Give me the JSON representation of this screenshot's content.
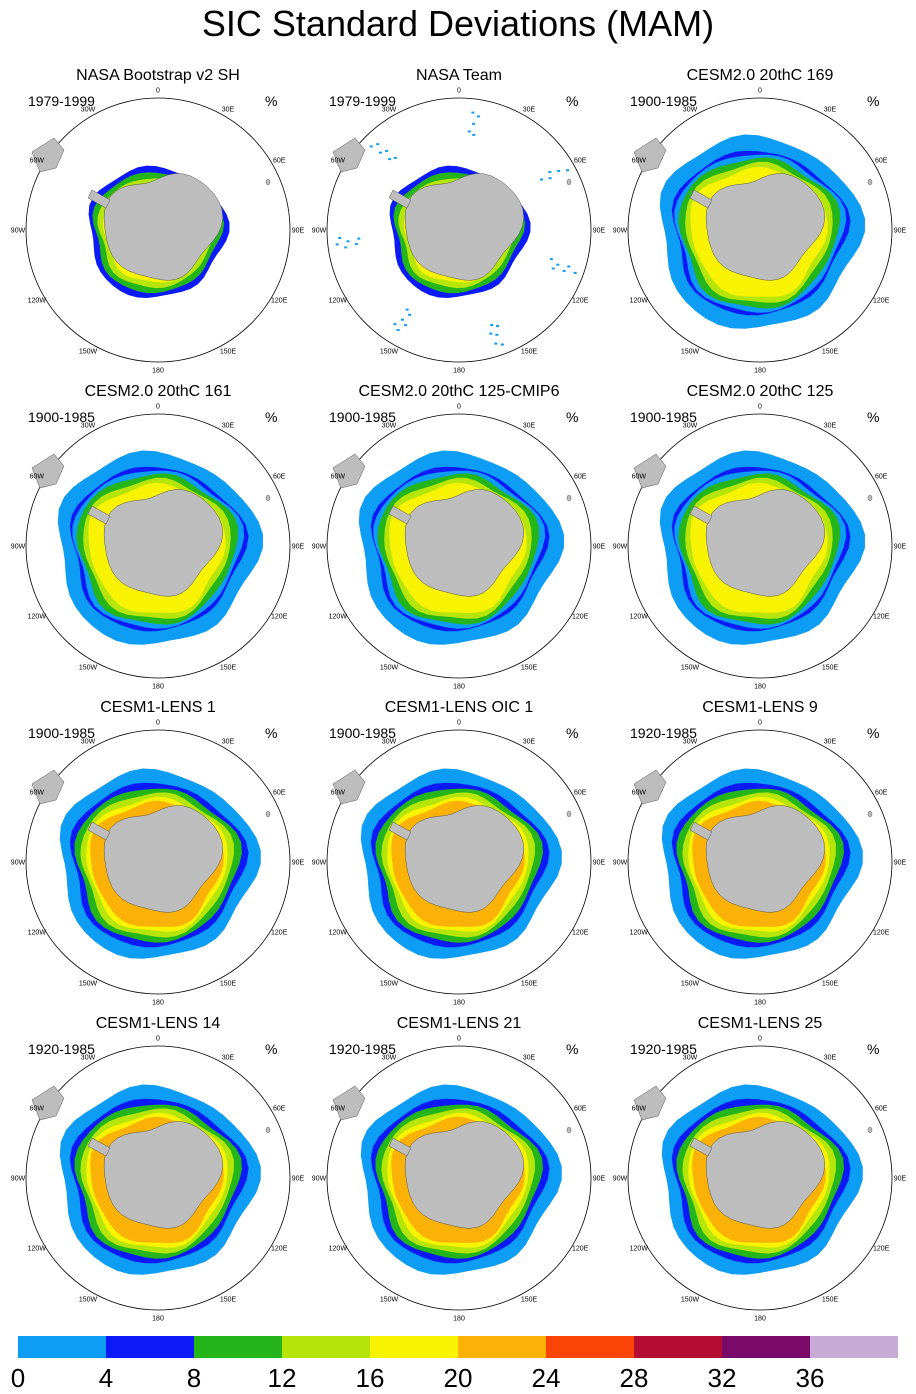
{
  "title": "SIC Standard Deviations (MAM)",
  "unit": "%",
  "degree_labels": [
    "0",
    "30E",
    "60E",
    "90E",
    "120E",
    "150E",
    "180",
    "150W",
    "120W",
    "90W",
    "60W",
    "30W"
  ],
  "panels": [
    {
      "title": "NASA Bootstrap v2 SH",
      "period": "1979-1999",
      "style": "obs"
    },
    {
      "title": "NASA Team",
      "period": "1979-1999",
      "style": "obs2"
    },
    {
      "title": "CESM2.0 20thC 169",
      "period": "1900-1985",
      "style": "model"
    },
    {
      "title": "CESM2.0 20thC 161",
      "period": "1900-1985",
      "style": "model"
    },
    {
      "title": "CESM2.0 20thC 125-CMIP6",
      "period": "1900-1985",
      "style": "model"
    },
    {
      "title": "CESM2.0 20thC 125",
      "period": "1900-1985",
      "style": "model"
    },
    {
      "title": "CESM1-LENS 1",
      "period": "1900-1985",
      "style": "lens"
    },
    {
      "title": "CESM1-LENS OIC 1",
      "period": "1900-1985",
      "style": "lens"
    },
    {
      "title": "CESM1-LENS 9",
      "period": "1920-1985",
      "style": "lens"
    },
    {
      "title": "CESM1-LENS 14",
      "period": "1920-1985",
      "style": "lens"
    },
    {
      "title": "CESM1-LENS 21",
      "period": "1920-1985",
      "style": "lens"
    },
    {
      "title": "CESM1-LENS 25",
      "period": "1920-1985",
      "style": "lens"
    }
  ],
  "colorbar": {
    "colors": [
      "#0d9df5",
      "#0b1af7",
      "#23b519",
      "#b5e50b",
      "#f8f203",
      "#f9b205",
      "#fa4407",
      "#b50d32",
      "#7a0a69",
      "#c7aad6"
    ],
    "labels": [
      "0",
      "4",
      "8",
      "12",
      "16",
      "20",
      "24",
      "28",
      "32",
      "36"
    ]
  }
}
